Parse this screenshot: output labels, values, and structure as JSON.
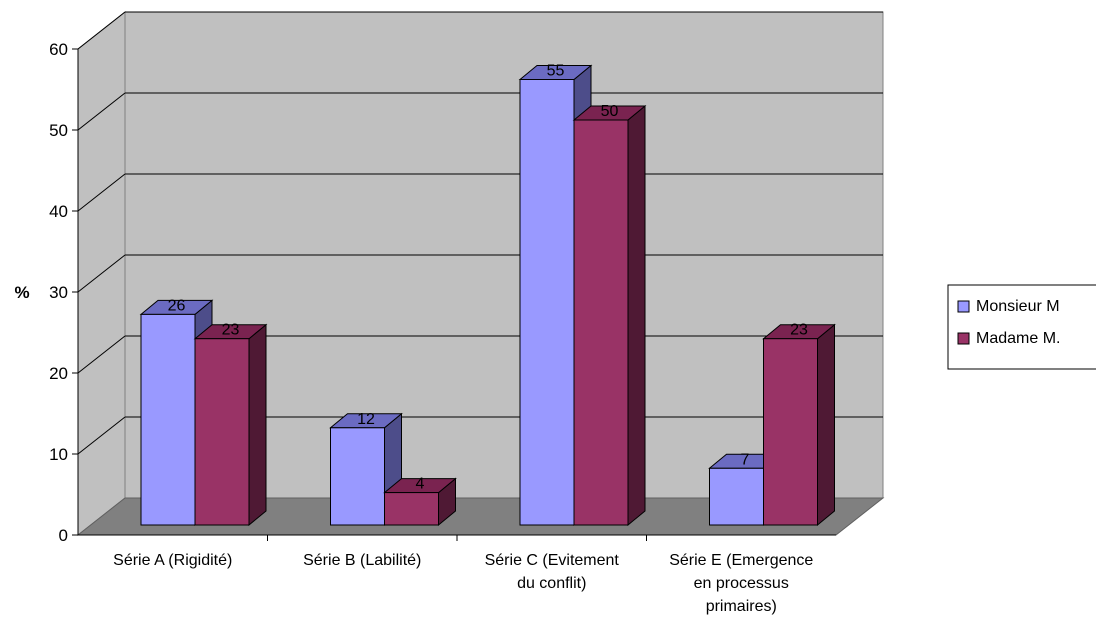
{
  "chart_data": {
    "type": "bar",
    "style": "3d-clustered",
    "ylabel": "%",
    "ylim": [
      0,
      60
    ],
    "yticks": [
      "0",
      "10",
      "20",
      "30",
      "40",
      "50",
      "60"
    ],
    "grid": true,
    "legend_position": "right",
    "categories": [
      [
        "Série A (Rigidité)"
      ],
      [
        "Série B (Labilité)"
      ],
      [
        "Série C (Evitement",
        "du conflit)"
      ],
      [
        "Série E (Emergence",
        "en processus",
        "primaires)"
      ]
    ],
    "series": [
      {
        "name": "Monsieur M",
        "values": [
          26,
          12,
          55,
          7
        ],
        "labels": [
          "26",
          "12",
          "55",
          "7"
        ],
        "color": "#9999ff",
        "top": "#6b6bc2",
        "side": "#4d4d8a"
      },
      {
        "name": "Madame M.",
        "values": [
          23,
          4,
          50,
          23
        ],
        "labels": [
          "23",
          "4",
          "50",
          "23"
        ],
        "color": "#993366",
        "top": "#7a2350",
        "side": "#4f1934"
      }
    ]
  }
}
